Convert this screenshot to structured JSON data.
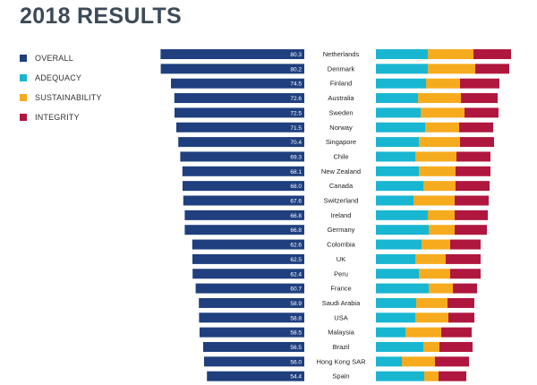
{
  "title": "2018 RESULTS",
  "legend": [
    {
      "label": "OVERALL",
      "color": "#1f3f7e"
    },
    {
      "label": "ADEQUACY",
      "color": "#19b6d2"
    },
    {
      "label": "SUSTAINABILITY",
      "color": "#f6ab1e"
    },
    {
      "label": "INTEGRITY",
      "color": "#b0173e"
    }
  ],
  "chart_data": {
    "type": "bar",
    "title": "2018 RESULTS",
    "categories": [
      "Netherlands",
      "Denmark",
      "Finland",
      "Australia",
      "Sweden",
      "Norway",
      "Singapore",
      "Chile",
      "New Zealand",
      "Canada",
      "Switzerland",
      "Ireland",
      "Germany",
      "Colombia",
      "UK",
      "Peru",
      "France",
      "Saudi Arabia",
      "USA",
      "Malaysia",
      "Brazil",
      "Hong Kong SAR",
      "Spain"
    ],
    "series": [
      {
        "name": "OVERALL",
        "color": "#1f3f7e",
        "values": [
          80.3,
          80.2,
          74.5,
          72.6,
          72.5,
          71.5,
          70.4,
          69.3,
          68.1,
          68.0,
          67.6,
          66.8,
          66.8,
          62.6,
          62.5,
          62.4,
          60.7,
          58.9,
          58.8,
          58.5,
          56.5,
          56.0,
          54.4
        ]
      },
      {
        "name": "ADEQUACY",
        "color": "#19b6d2",
        "values": [
          29,
          29,
          28,
          23.5,
          25,
          27.5,
          24,
          22,
          24,
          26.5,
          21,
          29,
          29.5,
          25.5,
          22,
          24,
          29.5,
          22.5,
          22,
          16.5,
          26.5,
          14.5,
          27
        ]
      },
      {
        "name": "SUSTAINABILITY",
        "color": "#f6ab1e",
        "values": [
          25.5,
          26.5,
          19,
          24,
          24.5,
          19,
          23,
          23,
          20.5,
          18,
          23,
          15,
          14.5,
          16,
          17,
          17.5,
          13.5,
          17.5,
          18.5,
          20,
          9,
          18.5,
          8
        ]
      },
      {
        "name": "INTEGRITY",
        "color": "#b0173e",
        "values": [
          21,
          19,
          22,
          20.5,
          19,
          19,
          19,
          19,
          19.5,
          19,
          19,
          18.5,
          18,
          17,
          19.5,
          17,
          13.5,
          15,
          14.5,
          17,
          18.5,
          19,
          15.5
        ]
      }
    ]
  }
}
